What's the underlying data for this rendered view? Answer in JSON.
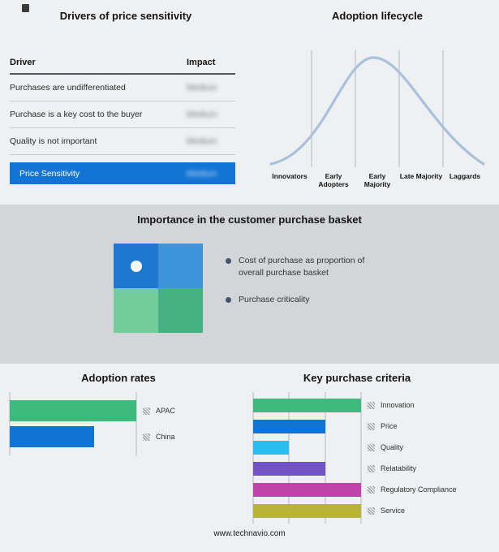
{
  "drivers_panel": {
    "title": "Drivers of price sensitivity",
    "headers": {
      "driver": "Driver",
      "impact": "Impact"
    },
    "rows": [
      {
        "driver": "Purchases are undifferentiated",
        "impact": "Medium"
      },
      {
        "driver": "Purchase is a key cost to the buyer",
        "impact": "Medium"
      },
      {
        "driver": "Quality is not important",
        "impact": "Medium"
      }
    ],
    "highlight": {
      "driver": "Price Sensitivity",
      "impact": "Medium"
    },
    "highlight_color": "#1274d4",
    "impact_values_blurred": true
  },
  "lifecycle_panel": {
    "title": "Adoption lifecycle",
    "curve_color": "#a9c1da"
  },
  "basket_panel": {
    "title": "Importance in the customer purchase basket",
    "bullets": [
      "Cost of purchase as proportion of overall purchase basket",
      "Purchase criticality"
    ],
    "bullet_color": "#44546a",
    "quadrants": {
      "top_left": "#1e78d0",
      "top_right": "#3f93dd",
      "bottom_left": "#73cc9c",
      "bottom_right": "#44b381"
    }
  },
  "adoption_panel": {
    "title": "Adoption rates"
  },
  "criteria_panel": {
    "title": "Key purchase criteria"
  },
  "footer": {
    "url": "www.technavio.com"
  },
  "chart_data": [
    {
      "id": "drivers_table",
      "type": "table",
      "title": "Drivers of price sensitivity",
      "columns": [
        "Driver",
        "Impact"
      ],
      "rows": [
        [
          "Purchases are undifferentiated",
          "Medium"
        ],
        [
          "Purchase is a key cost to the buyer",
          "Medium"
        ],
        [
          "Quality is not important",
          "Medium"
        ],
        [
          "Price Sensitivity",
          "Medium"
        ]
      ]
    },
    {
      "id": "adoption_lifecycle",
      "type": "line",
      "shape": "bell-curve",
      "title": "Adoption lifecycle",
      "categories": [
        "Innovators",
        "Early Adopters",
        "Early Majority",
        "Late Majority",
        "Laggards"
      ],
      "line_color": "#a9c1da",
      "grid": "vertical-category-separators"
    },
    {
      "id": "adoption_rates",
      "type": "bar",
      "orientation": "horizontal",
      "title": "Adoption rates",
      "categories": [
        "APAC",
        "China"
      ],
      "values": [
        3,
        2
      ],
      "xmax": 3,
      "divisions": 1,
      "colors": [
        "#3eba7e",
        "#1173d4"
      ],
      "legend_position": "right"
    },
    {
      "id": "key_purchase_criteria",
      "type": "bar",
      "orientation": "horizontal",
      "title": "Key purchase criteria",
      "categories": [
        "Innovation",
        "Price",
        "Quality",
        "Relatability",
        "Regulatory Compliance",
        "Service"
      ],
      "values": [
        3,
        2,
        1,
        2,
        3,
        3
      ],
      "xmax": 3,
      "divisions": 3,
      "colors": [
        "#3eba7e",
        "#1173d4",
        "#29bdf2",
        "#7153c6",
        "#c242ab",
        "#b9b23b"
      ],
      "legend_position": "right"
    }
  ]
}
